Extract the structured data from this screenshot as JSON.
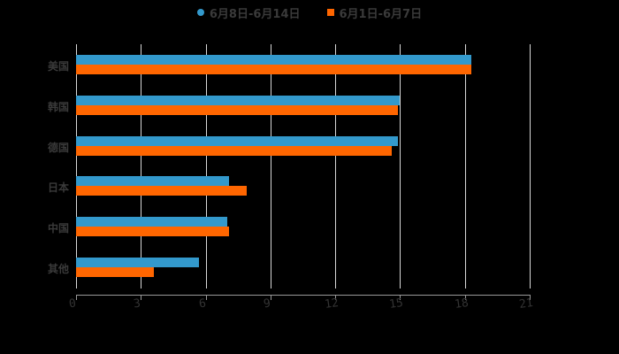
{
  "chart_data": {
    "type": "bar",
    "orientation": "horizontal",
    "title": "",
    "xlabel": "",
    "ylabel": "",
    "categories": [
      "美国",
      "韩国",
      "德国",
      "日本",
      "中国",
      "其他"
    ],
    "series": [
      {
        "name": "6月8日-6月14日",
        "color": "#3399cc",
        "values": [
          18.3,
          15.0,
          14.9,
          7.1,
          7.0,
          5.7
        ]
      },
      {
        "name": "6月1日-6月7日",
        "color": "#ff6600",
        "values": [
          18.3,
          14.9,
          14.6,
          7.9,
          7.1,
          3.6
        ]
      }
    ],
    "xlim": [
      0,
      21
    ],
    "xticks": [
      "0",
      "3",
      "6",
      "9",
      "12",
      "15",
      "18",
      "21"
    ],
    "grid": true,
    "legend_position": "top"
  }
}
